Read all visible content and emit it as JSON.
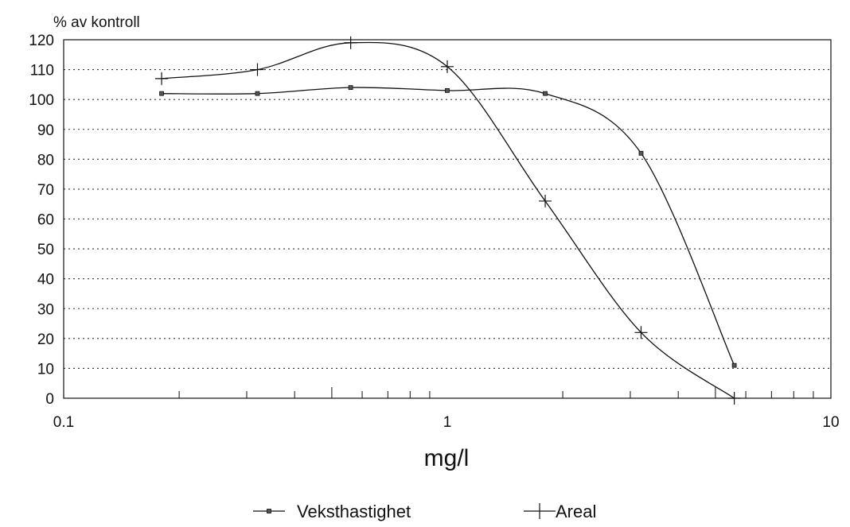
{
  "chart_data": {
    "type": "line",
    "title": "",
    "ylabel": "% av kontroll",
    "xlabel": "mg/l",
    "xscale": "log",
    "xlim": [
      0.1,
      10
    ],
    "ylim": [
      0,
      120
    ],
    "x_tick_labels": [
      "0.1",
      "1",
      "10"
    ],
    "y_tick_labels": [
      "0",
      "10",
      "20",
      "30",
      "40",
      "50",
      "60",
      "70",
      "80",
      "90",
      "100",
      "110",
      "120"
    ],
    "grid": "horizontal dotted",
    "legend_position": "bottom",
    "series": [
      {
        "name": "Veksthastighet",
        "marker": "small-square",
        "x": [
          0.18,
          0.32,
          0.56,
          1.0,
          1.8,
          3.2,
          5.6
        ],
        "y": [
          102,
          102,
          104,
          103,
          102,
          82,
          11
        ]
      },
      {
        "name": "Areal",
        "marker": "plus",
        "x": [
          0.18,
          0.32,
          0.56,
          1.0,
          1.8,
          3.2,
          5.6
        ],
        "y": [
          107,
          110,
          119,
          111,
          66,
          22,
          0
        ]
      }
    ]
  }
}
